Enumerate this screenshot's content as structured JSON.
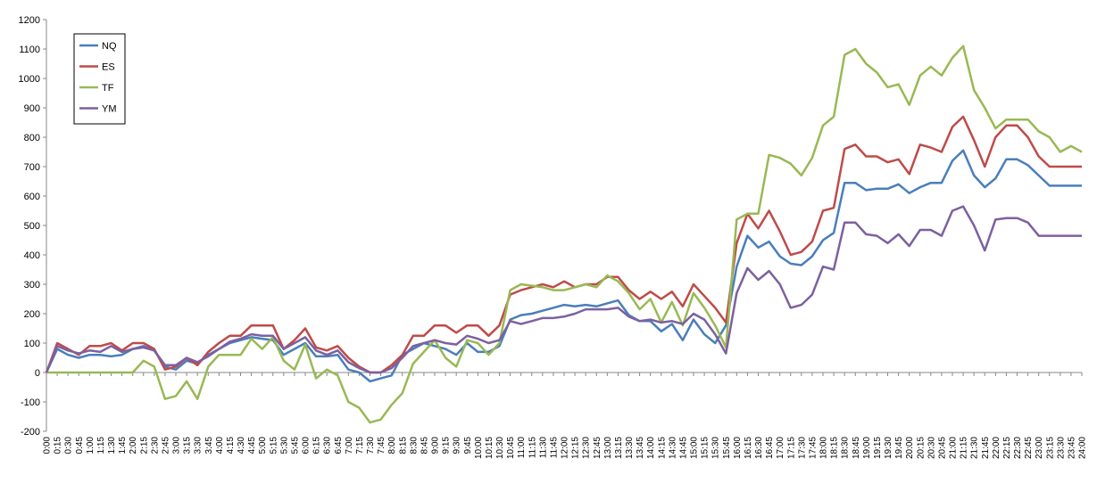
{
  "chart_data": {
    "type": "line",
    "title": "",
    "xlabel": "",
    "ylabel": "",
    "ylim": [
      -200,
      1200
    ],
    "ystep": 100,
    "grid": false,
    "legend_position": "top-left",
    "x": [
      "0:00",
      "0:15",
      "0:30",
      "0:45",
      "1:00",
      "1:15",
      "1:30",
      "1:45",
      "2:00",
      "2:15",
      "2:30",
      "2:45",
      "3:00",
      "3:15",
      "3:30",
      "3:45",
      "4:00",
      "4:15",
      "4:30",
      "4:45",
      "5:00",
      "5:15",
      "5:30",
      "5:45",
      "6:00",
      "6:15",
      "6:30",
      "6:45",
      "7:00",
      "7:15",
      "7:30",
      "7:45",
      "8:00",
      "8:15",
      "8:30",
      "8:45",
      "9:00",
      "9:15",
      "9:30",
      "9:45",
      "10:00",
      "10:15",
      "10:30",
      "10:45",
      "11:00",
      "11:15",
      "11:30",
      "11:45",
      "12:00",
      "12:15",
      "12:30",
      "12:45",
      "13:00",
      "13:15",
      "13:30",
      "13:45",
      "14:00",
      "14:15",
      "14:30",
      "14:45",
      "15:00",
      "15:15",
      "15:30",
      "15:45",
      "16:00",
      "16:15",
      "16:30",
      "16:45",
      "17:00",
      "17:15",
      "17:30",
      "17:45",
      "18:00",
      "18:15",
      "18:30",
      "18:45",
      "19:00",
      "19:15",
      "19:30",
      "19:45",
      "20:00",
      "20:15",
      "20:30",
      "20:45",
      "21:00",
      "21:15",
      "21:30",
      "21:45",
      "22:00",
      "22:15",
      "22:30",
      "22:45",
      "23:00",
      "23:15",
      "23:30",
      "23:45",
      "24:00"
    ],
    "series": [
      {
        "name": "NQ",
        "color": "#4a7ebb",
        "values": [
          0,
          80,
          60,
          50,
          60,
          60,
          55,
          60,
          80,
          90,
          75,
          20,
          10,
          40,
          30,
          60,
          80,
          100,
          110,
          120,
          115,
          110,
          60,
          80,
          100,
          55,
          55,
          60,
          10,
          0,
          -30,
          -20,
          -10,
          60,
          80,
          100,
          90,
          80,
          60,
          100,
          70,
          70,
          90,
          180,
          195,
          200,
          210,
          220,
          230,
          225,
          230,
          225,
          235,
          245,
          195,
          175,
          175,
          140,
          165,
          110,
          180,
          130,
          100,
          160,
          360,
          465,
          425,
          445,
          395,
          370,
          365,
          395,
          450,
          475,
          645,
          645,
          620,
          625,
          625,
          640,
          610,
          630,
          645,
          645,
          720,
          755,
          670,
          630,
          660,
          725,
          725,
          705,
          670,
          635,
          635,
          635,
          635
        ]
      },
      {
        "name": "ES",
        "color": "#be4b48",
        "values": [
          0,
          100,
          80,
          60,
          90,
          90,
          100,
          75,
          100,
          100,
          80,
          10,
          20,
          50,
          25,
          70,
          100,
          125,
          125,
          160,
          160,
          160,
          80,
          110,
          150,
          85,
          75,
          90,
          50,
          20,
          0,
          0,
          25,
          60,
          125,
          125,
          160,
          160,
          135,
          160,
          160,
          125,
          160,
          265,
          280,
          290,
          300,
          290,
          310,
          290,
          300,
          300,
          325,
          325,
          280,
          250,
          275,
          250,
          275,
          225,
          300,
          260,
          220,
          170,
          440,
          540,
          490,
          550,
          480,
          400,
          410,
          445,
          550,
          560,
          760,
          775,
          735,
          735,
          715,
          725,
          675,
          775,
          765,
          750,
          835,
          870,
          790,
          700,
          800,
          840,
          840,
          800,
          735,
          700,
          700,
          700,
          700
        ]
      },
      {
        "name": "TF",
        "color": "#98b954",
        "values": [
          0,
          0,
          0,
          0,
          0,
          0,
          0,
          0,
          0,
          40,
          20,
          -90,
          -80,
          -30,
          -90,
          20,
          60,
          60,
          60,
          115,
          80,
          120,
          40,
          10,
          95,
          -20,
          10,
          -10,
          -100,
          -120,
          -170,
          -160,
          -110,
          -70,
          30,
          70,
          110,
          50,
          20,
          110,
          100,
          60,
          100,
          280,
          300,
          295,
          290,
          280,
          280,
          290,
          300,
          290,
          330,
          310,
          270,
          215,
          250,
          170,
          240,
          160,
          270,
          220,
          160,
          85,
          520,
          540,
          540,
          740,
          730,
          710,
          670,
          730,
          840,
          870,
          1080,
          1100,
          1050,
          1020,
          970,
          980,
          910,
          1010,
          1040,
          1010,
          1070,
          1110,
          960,
          900,
          830,
          860,
          860,
          860,
          820,
          800,
          750,
          770,
          750
        ]
      },
      {
        "name": "YM",
        "color": "#7d60a0",
        "values": [
          0,
          90,
          75,
          65,
          75,
          70,
          90,
          70,
          80,
          85,
          75,
          25,
          25,
          50,
          35,
          55,
          80,
          105,
          115,
          130,
          125,
          125,
          80,
          100,
          120,
          75,
          60,
          75,
          35,
          15,
          0,
          0,
          15,
          50,
          90,
          100,
          110,
          100,
          95,
          125,
          115,
          100,
          110,
          175,
          165,
          175,
          185,
          185,
          190,
          200,
          215,
          215,
          215,
          220,
          190,
          175,
          180,
          170,
          175,
          165,
          200,
          180,
          130,
          65,
          270,
          355,
          315,
          345,
          300,
          220,
          230,
          265,
          360,
          350,
          510,
          510,
          470,
          465,
          440,
          470,
          430,
          485,
          485,
          465,
          550,
          565,
          500,
          415,
          520,
          525,
          525,
          510,
          465,
          465,
          465,
          465,
          465
        ]
      }
    ]
  }
}
